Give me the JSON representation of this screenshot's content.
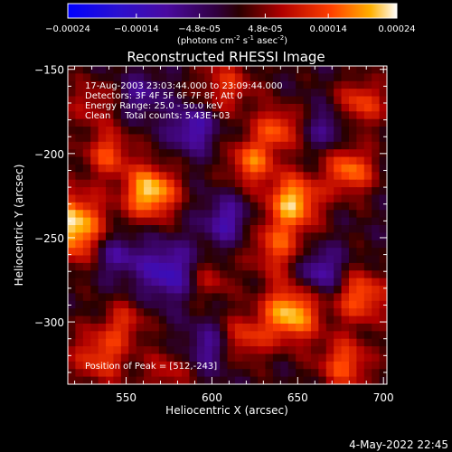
{
  "chart_data": {
    "type": "heatmap",
    "title": "Reconstructed RHESSI Image",
    "xlabel": "Heliocentric X (arcsec)",
    "ylabel": "Heliocentric Y (arcsec)",
    "xlim": [
      516,
      702
    ],
    "ylim": [
      -337,
      -148
    ],
    "x_ticks": [
      550,
      600,
      650,
      700
    ],
    "y_ticks": [
      -150,
      -200,
      -250,
      -300
    ],
    "colorbar": {
      "min": -0.00024,
      "max": 0.00024,
      "ticks": [
        "-0.00024",
        "-0.00014",
        "-4.8e-05",
        "4.8e-05",
        "0.00014",
        "0.00024"
      ],
      "units_main": "(photons cm",
      "units_sup1": "-2",
      "units_mid1": " s",
      "units_sup2": "-1",
      "units_mid2": " asec",
      "units_sup3": "-2",
      "units_end": ")"
    },
    "info_lines": [
      "17-Aug-2003 23:03:44.000 to 23:09:44.000",
      "Detectors: 3F 4F 5F 6F 7F 8F, Att 0",
      "Energy Range: 25.0 - 50.0 keV",
      "Clean     Total counts: 5.43E+03"
    ],
    "peak_label": "Position of Peak = [512,-243]",
    "peak_position": [
      512,
      -243
    ],
    "blobs": [
      {
        "x": 517,
        "y": -243,
        "r": 14,
        "v": 1.0
      },
      {
        "x": 565,
        "y": -223,
        "r": 11,
        "v": 0.95
      },
      {
        "x": 540,
        "y": -200,
        "r": 10,
        "v": 0.55
      },
      {
        "x": 530,
        "y": -170,
        "r": 10,
        "v": 0.35
      },
      {
        "x": 610,
        "y": -160,
        "r": 12,
        "v": 0.45
      },
      {
        "x": 640,
        "y": -185,
        "r": 9,
        "v": 0.6
      },
      {
        "x": 625,
        "y": -205,
        "r": 10,
        "v": 0.65
      },
      {
        "x": 650,
        "y": -228,
        "r": 11,
        "v": 0.85
      },
      {
        "x": 640,
        "y": -255,
        "r": 12,
        "v": 0.55
      },
      {
        "x": 648,
        "y": -295,
        "r": 12,
        "v": 0.9
      },
      {
        "x": 620,
        "y": -310,
        "r": 10,
        "v": 0.5
      },
      {
        "x": 683,
        "y": -210,
        "r": 10,
        "v": 0.7
      },
      {
        "x": 690,
        "y": -170,
        "r": 10,
        "v": 0.55
      },
      {
        "x": 690,
        "y": -285,
        "r": 11,
        "v": 0.65
      },
      {
        "x": 680,
        "y": -325,
        "r": 11,
        "v": 0.6
      },
      {
        "x": 535,
        "y": -320,
        "r": 12,
        "v": 0.55
      },
      {
        "x": 550,
        "y": -300,
        "r": 9,
        "v": 0.4
      },
      {
        "x": 600,
        "y": -275,
        "r": 9,
        "v": 0.35
      },
      {
        "x": 575,
        "y": -330,
        "r": 10,
        "v": 0.35
      },
      {
        "x": 590,
        "y": -185,
        "r": 10,
        "v": -0.5
      },
      {
        "x": 575,
        "y": -270,
        "r": 12,
        "v": -0.55
      },
      {
        "x": 665,
        "y": -270,
        "r": 10,
        "v": -0.5
      },
      {
        "x": 610,
        "y": -240,
        "r": 10,
        "v": -0.45
      },
      {
        "x": 545,
        "y": -260,
        "r": 9,
        "v": -0.4
      },
      {
        "x": 600,
        "y": -315,
        "r": 10,
        "v": -0.4
      },
      {
        "x": 670,
        "y": -185,
        "r": 8,
        "v": -0.35
      },
      {
        "x": 560,
        "y": -165,
        "r": 9,
        "v": -0.35
      }
    ]
  },
  "timestamp": "4-May-2022 22:45"
}
